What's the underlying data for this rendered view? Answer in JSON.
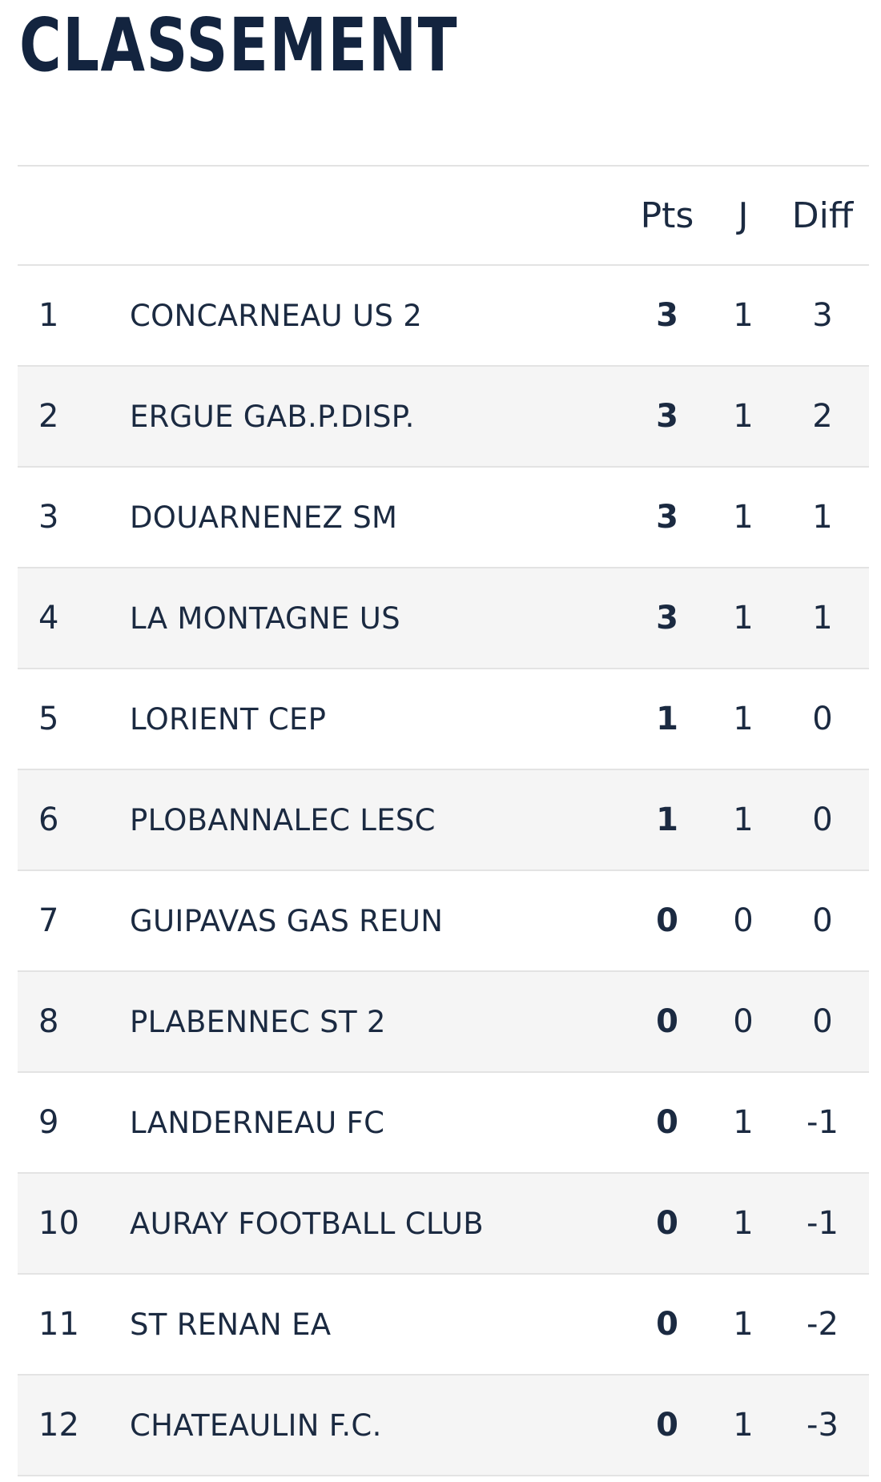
{
  "title": "CLASSEMENT",
  "columns": {
    "pts": "Pts",
    "j": "J",
    "diff": "Diff"
  },
  "rows": [
    {
      "rank": "1",
      "team": "CONCARNEAU US 2",
      "pts": "3",
      "j": "1",
      "diff": "3"
    },
    {
      "rank": "2",
      "team": "ERGUE GAB.P.DISP.",
      "pts": "3",
      "j": "1",
      "diff": "2"
    },
    {
      "rank": "3",
      "team": "DOUARNENEZ SM",
      "pts": "3",
      "j": "1",
      "diff": "1"
    },
    {
      "rank": "4",
      "team": "LA MONTAGNE US",
      "pts": "3",
      "j": "1",
      "diff": "1"
    },
    {
      "rank": "5",
      "team": "LORIENT CEP",
      "pts": "1",
      "j": "1",
      "diff": "0"
    },
    {
      "rank": "6",
      "team": "PLOBANNALEC LESC",
      "pts": "1",
      "j": "1",
      "diff": "0"
    },
    {
      "rank": "7",
      "team": "GUIPAVAS GAS REUN",
      "pts": "0",
      "j": "0",
      "diff": "0"
    },
    {
      "rank": "8",
      "team": "PLABENNEC ST 2",
      "pts": "0",
      "j": "0",
      "diff": "0"
    },
    {
      "rank": "9",
      "team": "LANDERNEAU FC",
      "pts": "0",
      "j": "1",
      "diff": "-1"
    },
    {
      "rank": "10",
      "team": "AURAY FOOTBALL CLUB",
      "pts": "0",
      "j": "1",
      "diff": "-1"
    },
    {
      "rank": "11",
      "team": "ST RENAN EA",
      "pts": "0",
      "j": "1",
      "diff": "-2"
    },
    {
      "rank": "12",
      "team": "CHATEAULIN F.C.",
      "pts": "0",
      "j": "1",
      "diff": "-3"
    }
  ]
}
